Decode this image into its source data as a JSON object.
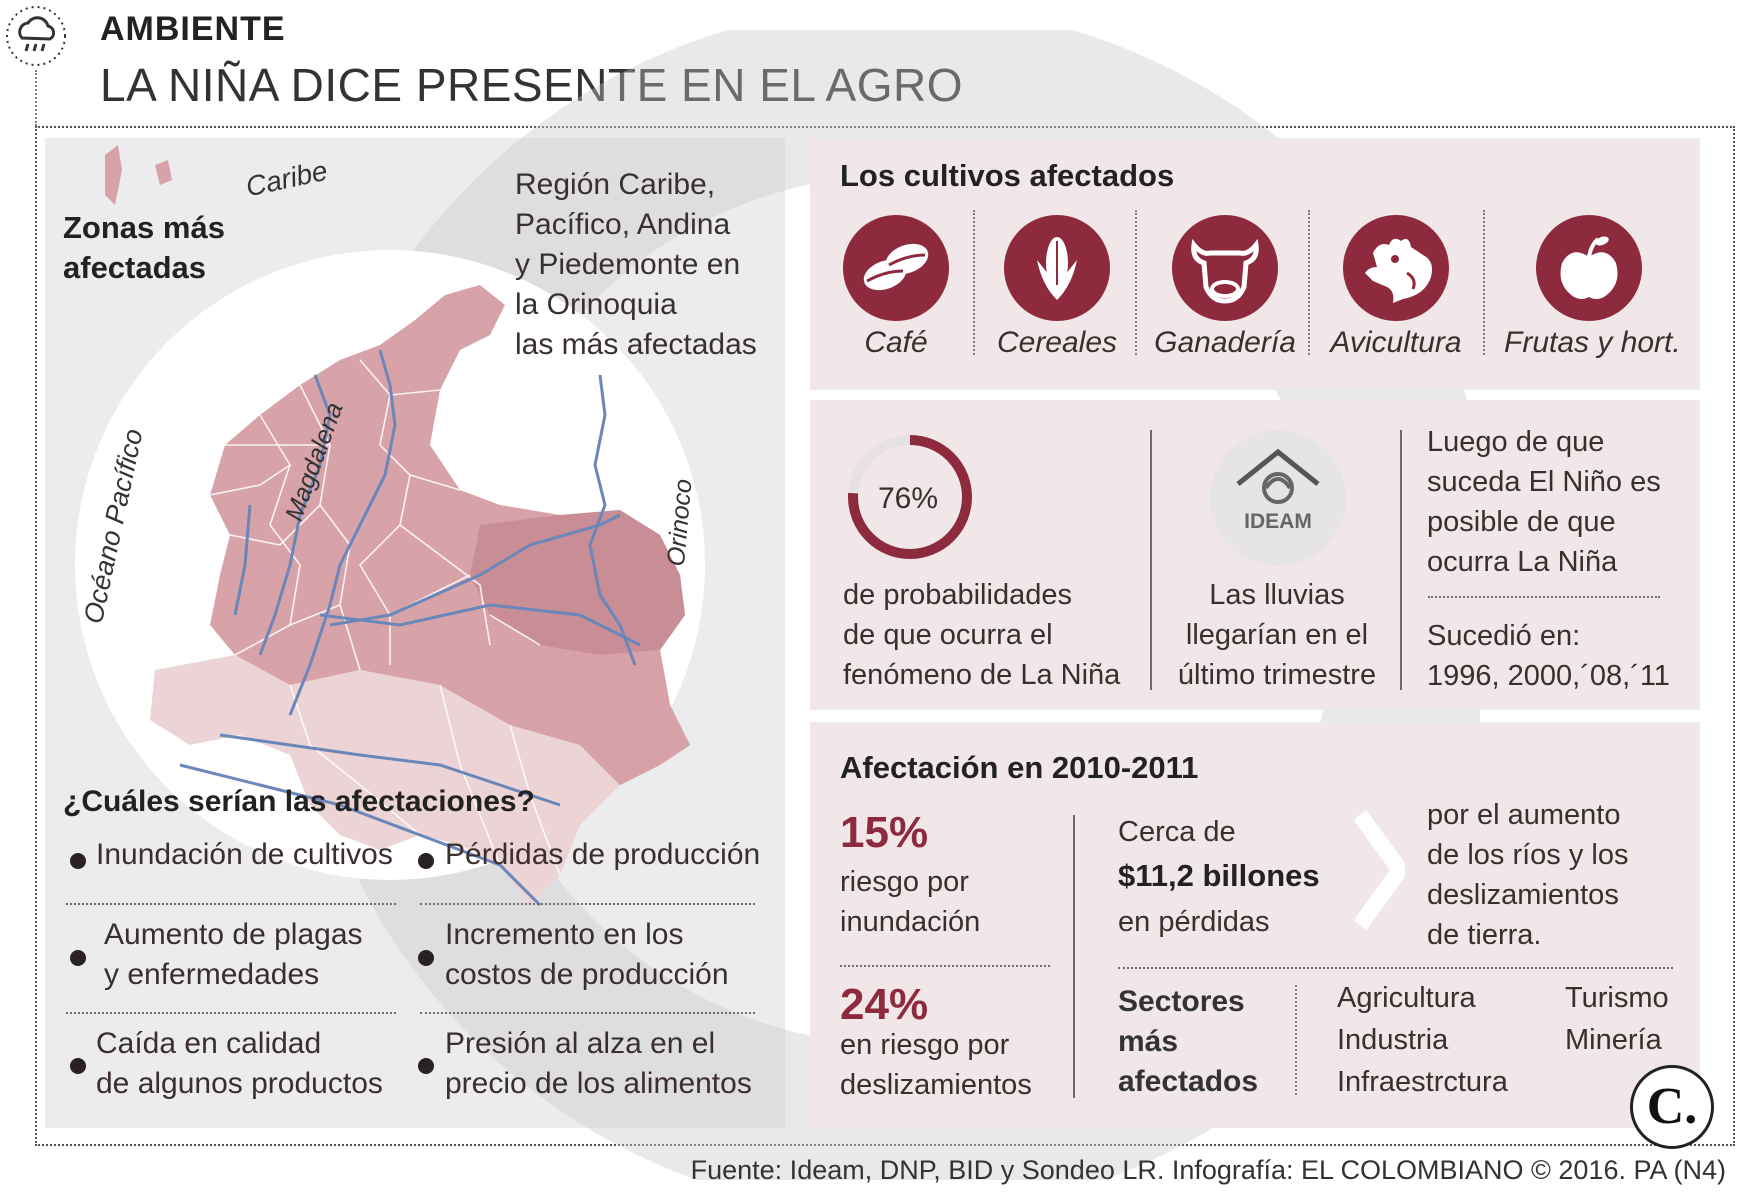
{
  "header": {
    "section_tag": "AMBIENTE",
    "title": "LA NIÑA DICE PRESENTE EN EL AGRO"
  },
  "map": {
    "heading_line1": "Zonas más",
    "heading_line2": "afectadas",
    "region_text": [
      "Región Caribe,",
      "Pacífico, Andina",
      "y Piedemonte en",
      "la Orinoquia",
      "las más afectadas"
    ],
    "label_caribe": "Caribe",
    "label_pacifico": "Océano Pacífico",
    "label_magdalena": "Magdalena",
    "label_orinoco": "Orinoco"
  },
  "effects": {
    "heading": "¿Cuáles serían las afectaciones?",
    "items": [
      {
        "line1": "Inundación de cultivos",
        "line2": ""
      },
      {
        "line1": "Pérdidas de producción",
        "line2": ""
      },
      {
        "line1": "Aumento de plagas",
        "line2": "y enfermedades"
      },
      {
        "line1": "Incremento en los",
        "line2": "costos de producción"
      },
      {
        "line1": "Caída en calidad",
        "line2": "de algunos productos"
      },
      {
        "line1": "Presión al alza en el",
        "line2": "precio de los alimentos"
      }
    ]
  },
  "crops": {
    "heading": "Los cultivos afectados",
    "items": [
      {
        "label": "Café",
        "icon": "coffee-bean-icon"
      },
      {
        "label": "Cereales",
        "icon": "corn-icon"
      },
      {
        "label": "Ganadería",
        "icon": "cow-icon"
      },
      {
        "label": "Avicultura",
        "icon": "chicken-icon"
      },
      {
        "label": "Frutas y hort.",
        "icon": "apple-icon"
      }
    ]
  },
  "probability": {
    "value": "76%",
    "fraction": 0.76,
    "text": [
      "de probabilidades",
      "de que ocurra el",
      "fenómeno de La Niña"
    ],
    "ideam_logo": "IDEAM",
    "rain_text": [
      "Las lluvias",
      "llegarían en el",
      "último trimestre"
    ],
    "after_text": [
      "Luego de que",
      "suceda El Niño es",
      "posible de que",
      "ocurra La Niña"
    ],
    "happened_label": "Sucedió en:",
    "happened_years": "1996, 2000,´08,´11"
  },
  "impact": {
    "heading": "Afectación en 2010-2011",
    "flood_pct": "15%",
    "flood_text": [
      "riesgo por",
      "inundación"
    ],
    "slide_pct": "24%",
    "slide_text": [
      "en riesgo por",
      "deslizamientos"
    ],
    "loss_prefix": "Cerca de",
    "loss_amount": "$11,2 billones",
    "loss_suffix": "en pérdidas",
    "cause_text": [
      "por el aumento",
      "de los ríos y los",
      "deslizamientos",
      "de tierra."
    ],
    "sectors_label": [
      "Sectores",
      "más",
      "afectados"
    ],
    "sectors_col1": [
      "Agricultura",
      "Industria",
      "Infraestrctura"
    ],
    "sectors_col2": [
      "Turismo",
      "Minería"
    ]
  },
  "footer": {
    "source": "Fuente: Ideam, DNP, BID y Sondeo LR. Infografía: EL COLOMBIANO © 2016. PA (N4)",
    "logo_letter": "C."
  },
  "colors": {
    "accent": "#8e2a3d",
    "map_fill": "#d7a3a8",
    "panel_gray": "#ececee",
    "panel_pink": "#f1e7e8",
    "river": "#6b86b8"
  }
}
